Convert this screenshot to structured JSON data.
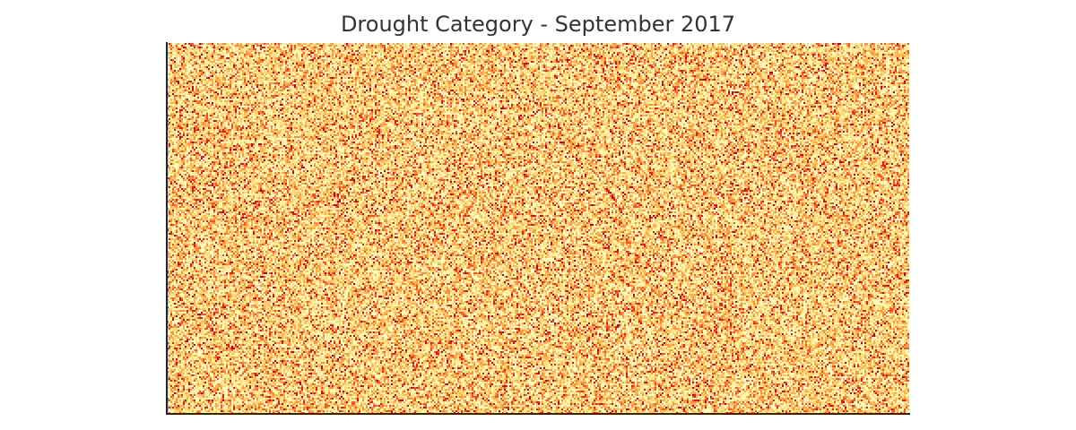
{
  "chart_data": {
    "type": "heatmap",
    "title": "Drought Category - September 2017",
    "xlabel": "",
    "ylabel": "",
    "grid": false,
    "legend": "none",
    "colormap": "YlOrRd",
    "category_colors": [
      "#ffffcc",
      "#ffeda0",
      "#fed976",
      "#feb24c",
      "#fd8d3c",
      "#fc4e2a",
      "#e31a1c",
      "#bd0026"
    ],
    "category_weights": [
      0.18,
      0.2,
      0.2,
      0.16,
      0.11,
      0.08,
      0.05,
      0.02
    ],
    "grid_rows": 207,
    "grid_cols": 414,
    "values_note": "random field"
  }
}
